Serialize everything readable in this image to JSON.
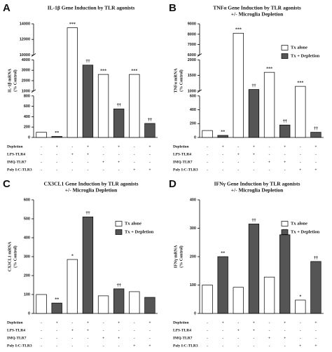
{
  "chart_data": [
    {
      "type": "bar",
      "panel_label": "A",
      "title": [
        "IL-1β Gene Induction by  TLR agonists"
      ],
      "y_label": [
        "IL-1β mRNA",
        "(% Control)"
      ],
      "legend": false,
      "y_segments": [
        {
          "ylim": [
            0,
            800
          ],
          "yticks": [
            0,
            200,
            400,
            600,
            800
          ]
        },
        {
          "ylim": [
            1000,
            4000
          ],
          "yticks": [
            1000,
            2000,
            3000,
            4000
          ]
        },
        {
          "ylim": [
            10000,
            14000
          ],
          "yticks": [
            10000,
            12000,
            14000
          ]
        }
      ],
      "series": [
        {
          "color": "#ffffff",
          "values": [
            100,
            13500,
            2600,
            2600
          ],
          "annotations": [
            null,
            "***",
            "***",
            "***"
          ]
        },
        {
          "color": "#555555",
          "values": [
            20,
            3500,
            550,
            270
          ],
          "annotations": [
            "**",
            "††",
            "††",
            "††"
          ]
        }
      ],
      "conditions": [
        {
          "label": "Depletion",
          "signs": [
            "-",
            "+",
            "-",
            "+",
            "-",
            "+",
            "-",
            "+"
          ]
        },
        {
          "label": "LPS-TLR4",
          "signs": [
            "-",
            "-",
            "+",
            "+",
            "-",
            "-",
            "-",
            "-"
          ]
        },
        {
          "label": "IMQ-TLR7",
          "signs": [
            "-",
            "-",
            "-",
            "-",
            "+",
            "+",
            "-",
            "-"
          ]
        },
        {
          "label": "Poly I:C-TLR3",
          "signs": [
            "-",
            "-",
            "-",
            "-",
            "-",
            "-",
            "+",
            "+"
          ]
        }
      ]
    },
    {
      "type": "bar",
      "panel_label": "B",
      "title": [
        "TNFα Gene Induction by  TLR agonists",
        "+/- Microglia Depletion"
      ],
      "y_label": [
        "TNFα mRNA",
        "(% Control)"
      ],
      "legend": true,
      "y_segments": [
        {
          "ylim": [
            0,
            600
          ],
          "yticks": [
            0,
            200,
            400,
            600
          ]
        },
        {
          "ylim": [
            1000,
            2000
          ],
          "yticks": [
            1000,
            1500,
            2000
          ]
        },
        {
          "ylim": [
            6000,
            9000
          ],
          "yticks": [
            6000,
            7000,
            8000,
            9000
          ]
        }
      ],
      "series": [
        {
          "name": "Tx alone",
          "color": "#ffffff",
          "values": [
            100,
            8100,
            1600,
            1150
          ],
          "annotations": [
            null,
            "***",
            "***",
            "***"
          ]
        },
        {
          "name": "Tx + Depletion",
          "color": "#555555",
          "values": [
            30,
            1050,
            180,
            75
          ],
          "annotations": [
            "**",
            "††",
            "††",
            "††"
          ]
        }
      ],
      "conditions": [
        {
          "label": "Depletion",
          "signs": [
            "-",
            "+",
            "-",
            "+",
            "-",
            "+",
            "-",
            "+"
          ]
        },
        {
          "label": "LPS-TLR4",
          "signs": [
            "-",
            "-",
            "+",
            "+",
            "-",
            "-",
            "-",
            "-"
          ]
        },
        {
          "label": "IMQ-TLR7",
          "signs": [
            "-",
            "-",
            "-",
            "-",
            "+",
            "+",
            "-",
            "-"
          ]
        },
        {
          "label": "Poly I:C-TLR3",
          "signs": [
            "-",
            "-",
            "-",
            "-",
            "-",
            "-",
            "+",
            "+"
          ]
        }
      ]
    },
    {
      "type": "bar",
      "panel_label": "C",
      "title": [
        "CX3CL1 Gene Induction by  TLR agonists",
        "+/- Microglia Depletion"
      ],
      "y_label": [
        "CX3CL1 mRNA",
        "(% Control)"
      ],
      "legend": true,
      "y_segments": [
        {
          "ylim": [
            0,
            600
          ],
          "yticks": [
            0,
            100,
            200,
            300,
            400,
            500,
            600
          ]
        }
      ],
      "series": [
        {
          "name": "Tx alone",
          "color": "#ffffff",
          "values": [
            100,
            285,
            93,
            115
          ],
          "annotations": [
            null,
            "*",
            null,
            null
          ]
        },
        {
          "name": "Tx + Depletion",
          "color": "#555555",
          "values": [
            55,
            510,
            130,
            85
          ],
          "annotations": [
            "**",
            "††",
            "††",
            null
          ]
        }
      ],
      "conditions": [
        {
          "label": "Depletion",
          "signs": [
            "-",
            "+",
            "-",
            "+",
            "-",
            "+",
            "-",
            "+"
          ]
        },
        {
          "label": "LPS-TLR4",
          "signs": [
            "-",
            "-",
            "+",
            "+",
            "-",
            "-",
            "-",
            "-"
          ]
        },
        {
          "label": "IMQ-TLR7",
          "signs": [
            "-",
            "-",
            "-",
            "-",
            "+",
            "+",
            "-",
            "-"
          ]
        },
        {
          "label": "Poly I:C-TLR3",
          "signs": [
            "-",
            "-",
            "-",
            "-",
            "-",
            "-",
            "+",
            "+"
          ]
        }
      ]
    },
    {
      "type": "bar",
      "panel_label": "D",
      "title": [
        "IFNγ Gene Induction by  TLR agonists",
        "+/- Microglia Depletion"
      ],
      "y_label": [
        "IFNγ mRNA",
        "(% Control)"
      ],
      "legend": true,
      "y_segments": [
        {
          "ylim": [
            0,
            400
          ],
          "yticks": [
            0,
            100,
            200,
            300,
            400
          ]
        }
      ],
      "series": [
        {
          "name": "Tx alone",
          "color": "#ffffff",
          "values": [
            100,
            92,
            128,
            47
          ],
          "annotations": [
            null,
            null,
            null,
            "*"
          ]
        },
        {
          "name": "Tx + Depletion",
          "color": "#555555",
          "values": [
            200,
            315,
            277,
            183
          ],
          "annotations": [
            "**",
            "††",
            "††",
            "††"
          ]
        }
      ],
      "conditions": [
        {
          "label": "Depletion",
          "signs": [
            "-",
            "+",
            "-",
            "+",
            "-",
            "+",
            "-",
            "+"
          ]
        },
        {
          "label": "LPS-TLR4",
          "signs": [
            "-",
            "-",
            "+",
            "+",
            "-",
            "-",
            "-",
            "-"
          ]
        },
        {
          "label": "IMQ-TLR7",
          "signs": [
            "-",
            "-",
            "-",
            "-",
            "+",
            "+",
            "-",
            "-"
          ]
        },
        {
          "label": "Poly I:C-TLR3",
          "signs": [
            "-",
            "-",
            "-",
            "-",
            "-",
            "-",
            "+",
            "+"
          ]
        }
      ]
    }
  ]
}
